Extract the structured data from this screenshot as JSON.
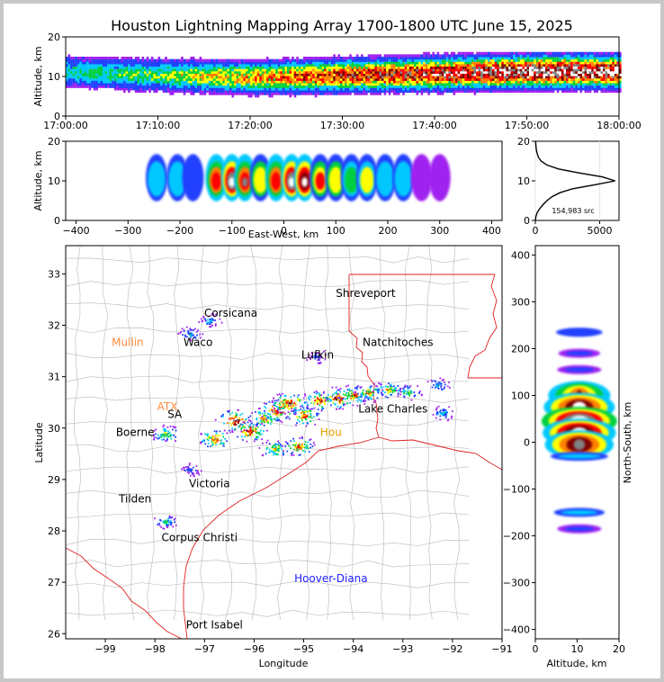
{
  "title": "Houston Lightning Mapping Array 1700-1800 UTC June 15, 2025",
  "colors": {
    "background": "#ffffff",
    "border": "#c8c8c8",
    "state_lines": "#e02020",
    "county_lines": "#b4b4b4",
    "density_scale": [
      "#a020f0",
      "#2040ff",
      "#00c8ff",
      "#00d040",
      "#ffff00",
      "#ff8000",
      "#ff0000",
      "#800000",
      "#808080",
      "#ffffff"
    ]
  },
  "chart_data": [
    {
      "id": "time_height",
      "type": "heatmap",
      "ylabel": "Altitude, km",
      "xlabel": "",
      "ylim": [
        0,
        20
      ],
      "yticks": [
        "0",
        "10",
        "20"
      ],
      "xticks": [
        "17:00:00",
        "17:10:00",
        "17:20:00",
        "17:30:00",
        "17:40:00",
        "17:50:00",
        "18:00:00"
      ],
      "x_range_minutes": [
        0,
        60
      ],
      "profile": [
        {
          "t": 0,
          "center": 11,
          "intensity": 0.3
        },
        {
          "t": 10,
          "center": 10,
          "intensity": 0.4
        },
        {
          "t": 20,
          "center": 9.5,
          "intensity": 0.55
        },
        {
          "t": 30,
          "center": 10,
          "intensity": 0.7
        },
        {
          "t": 40,
          "center": 10.5,
          "intensity": 0.8
        },
        {
          "t": 50,
          "center": 11,
          "intensity": 0.95
        },
        {
          "t": 60,
          "center": 11,
          "intensity": 0.9
        }
      ]
    },
    {
      "id": "east_west_height",
      "type": "heatmap",
      "xlabel": "East-West, km",
      "ylabel": "Altitude, km",
      "xlim": [
        -420,
        420
      ],
      "ylim": [
        0,
        20
      ],
      "xticks": [
        "−400",
        "−300",
        "−200",
        "−100",
        "0",
        "100",
        "200",
        "300",
        "400"
      ],
      "yticks": [
        "0",
        "10",
        "20"
      ],
      "cells": [
        {
          "x": -245,
          "peak": 0.45
        },
        {
          "x": -205,
          "peak": 0.55
        },
        {
          "x": -175,
          "peak": 0.4
        },
        {
          "x": -130,
          "peak": 0.8
        },
        {
          "x": -100,
          "peak": 1.0
        },
        {
          "x": -75,
          "peak": 0.85
        },
        {
          "x": -45,
          "peak": 0.7
        },
        {
          "x": -15,
          "peak": 0.8
        },
        {
          "x": 15,
          "peak": 1.0
        },
        {
          "x": 40,
          "peak": 0.95
        },
        {
          "x": 70,
          "peak": 0.75
        },
        {
          "x": 100,
          "peak": 0.7
        },
        {
          "x": 130,
          "peak": 0.6
        },
        {
          "x": 160,
          "peak": 0.65
        },
        {
          "x": 195,
          "peak": 0.55
        },
        {
          "x": 230,
          "peak": 0.45
        },
        {
          "x": 265,
          "peak": 0.3
        },
        {
          "x": 300,
          "peak": 0.2
        }
      ]
    },
    {
      "id": "altitude_histogram",
      "type": "line",
      "xlim": [
        0,
        6500
      ],
      "ylim": [
        0,
        20
      ],
      "xticks": [
        "0",
        "5000"
      ],
      "yticks": [
        "0",
        "10",
        "20"
      ],
      "annotation": "154,983 src",
      "points": [
        [
          5,
          0
        ],
        [
          40,
          1
        ],
        [
          150,
          2
        ],
        [
          350,
          3
        ],
        [
          600,
          4
        ],
        [
          900,
          5
        ],
        [
          1300,
          6
        ],
        [
          1900,
          7
        ],
        [
          2900,
          8
        ],
        [
          4600,
          9
        ],
        [
          6200,
          10
        ],
        [
          5200,
          11
        ],
        [
          3400,
          12
        ],
        [
          1800,
          13
        ],
        [
          900,
          14
        ],
        [
          450,
          15
        ],
        [
          230,
          16
        ],
        [
          130,
          17
        ],
        [
          70,
          18
        ],
        [
          40,
          19
        ],
        [
          20,
          20
        ]
      ]
    },
    {
      "id": "plan_view",
      "type": "scatter",
      "xlabel": "Longitude",
      "ylabel": "Latitude",
      "xlim": [
        -99.8,
        -91
      ],
      "ylim": [
        25.9,
        33.55
      ],
      "xticks": [
        "−99",
        "−98",
        "−97",
        "−96",
        "−95",
        "−94",
        "−93",
        "−92",
        "−91"
      ],
      "yticks": [
        "26",
        "27",
        "28",
        "29",
        "30",
        "31",
        "32",
        "33"
      ],
      "clusters": [
        {
          "lon": -96.4,
          "lat": 30.15,
          "peak": 0.9
        },
        {
          "lon": -96.1,
          "lat": 29.95,
          "peak": 0.8
        },
        {
          "lon": -95.8,
          "lat": 30.2,
          "peak": 0.7
        },
        {
          "lon": -95.55,
          "lat": 30.35,
          "peak": 0.9
        },
        {
          "lon": -95.3,
          "lat": 30.5,
          "peak": 0.85
        },
        {
          "lon": -95.0,
          "lat": 30.25,
          "peak": 0.7
        },
        {
          "lon": -94.7,
          "lat": 30.55,
          "peak": 0.75
        },
        {
          "lon": -94.3,
          "lat": 30.6,
          "peak": 0.8
        },
        {
          "lon": -94.0,
          "lat": 30.65,
          "peak": 0.7
        },
        {
          "lon": -93.7,
          "lat": 30.7,
          "peak": 0.6
        },
        {
          "lon": -93.3,
          "lat": 30.75,
          "peak": 0.55
        },
        {
          "lon": -92.9,
          "lat": 30.7,
          "peak": 0.45
        },
        {
          "lon": -92.2,
          "lat": 30.3,
          "peak": 0.3
        },
        {
          "lon": -96.8,
          "lat": 29.8,
          "peak": 0.7
        },
        {
          "lon": -97.8,
          "lat": 29.9,
          "peak": 0.5
        },
        {
          "lon": -95.6,
          "lat": 29.6,
          "peak": 0.6
        },
        {
          "lon": -95.1,
          "lat": 29.65,
          "peak": 0.7
        },
        {
          "lon": -97.3,
          "lat": 31.85,
          "peak": 0.3
        },
        {
          "lon": -96.9,
          "lat": 32.1,
          "peak": 0.25
        },
        {
          "lon": -94.75,
          "lat": 31.4,
          "peak": 0.2
        },
        {
          "lon": -97.8,
          "lat": 28.2,
          "peak": 0.35
        },
        {
          "lon": -97.3,
          "lat": 29.2,
          "peak": 0.2
        },
        {
          "lon": -92.3,
          "lat": 30.85,
          "peak": 0.3
        }
      ],
      "cities": [
        {
          "name": "Shreveport",
          "lon": -93.75,
          "lat": 32.55,
          "color": "#000000"
        },
        {
          "name": "Corsicana",
          "lon": -96.47,
          "lat": 32.17,
          "color": "#000000"
        },
        {
          "name": "Natchitoches",
          "lon": -93.1,
          "lat": 31.6,
          "color": "#000000"
        },
        {
          "name": "Mullin",
          "lon": -98.55,
          "lat": 31.6,
          "color": "#ff8c40"
        },
        {
          "name": "Waco",
          "lon": -97.13,
          "lat": 31.6,
          "color": "#000000"
        },
        {
          "name": "Lufkin",
          "lon": -94.72,
          "lat": 31.35,
          "color": "#000000"
        },
        {
          "name": "ATX",
          "lon": -97.75,
          "lat": 30.35,
          "color": "#ff8c40"
        },
        {
          "name": "SA",
          "lon": -97.6,
          "lat": 30.2,
          "color": "#000000"
        },
        {
          "name": "Lake Charles",
          "lon": -93.2,
          "lat": 30.3,
          "color": "#000000"
        },
        {
          "name": "Boerne",
          "lon": -98.4,
          "lat": 29.85,
          "color": "#000000"
        },
        {
          "name": "Hou",
          "lon": -94.45,
          "lat": 29.85,
          "color": "#e8a000"
        },
        {
          "name": "Victoria",
          "lon": -96.9,
          "lat": 28.85,
          "color": "#000000"
        },
        {
          "name": "Tilden",
          "lon": -98.4,
          "lat": 28.55,
          "color": "#000000"
        },
        {
          "name": "Corpus Christi",
          "lon": -97.1,
          "lat": 27.8,
          "color": "#000000"
        },
        {
          "name": "Hoover-Diana",
          "lon": -94.45,
          "lat": 27.0,
          "color": "#2020ff"
        },
        {
          "name": "Port Isabel",
          "lon": -96.8,
          "lat": 26.1,
          "color": "#000000"
        }
      ]
    },
    {
      "id": "north_south_height",
      "type": "heatmap",
      "xlabel": "Altitude, km",
      "ylabel": "North-South, km",
      "xlim": [
        0,
        20
      ],
      "ylim": [
        -420,
        420
      ],
      "xticks": [
        "0",
        "10",
        "20"
      ],
      "yticks": [
        "−400",
        "−300",
        "−200",
        "−100",
        "0",
        "100",
        "200",
        "300",
        "400"
      ],
      "cells": [
        {
          "y": 235,
          "peak": 0.35
        },
        {
          "y": 190,
          "peak": 0.25
        },
        {
          "y": 155,
          "peak": 0.3
        },
        {
          "y": 100,
          "peak": 0.7
        },
        {
          "y": 75,
          "peak": 0.9
        },
        {
          "y": 45,
          "peak": 1.0
        },
        {
          "y": 20,
          "peak": 0.95
        },
        {
          "y": -5,
          "peak": 0.85
        },
        {
          "y": -30,
          "peak": 0.6
        },
        {
          "y": -150,
          "peak": 0.45
        },
        {
          "y": -185,
          "peak": 0.3
        }
      ]
    }
  ]
}
